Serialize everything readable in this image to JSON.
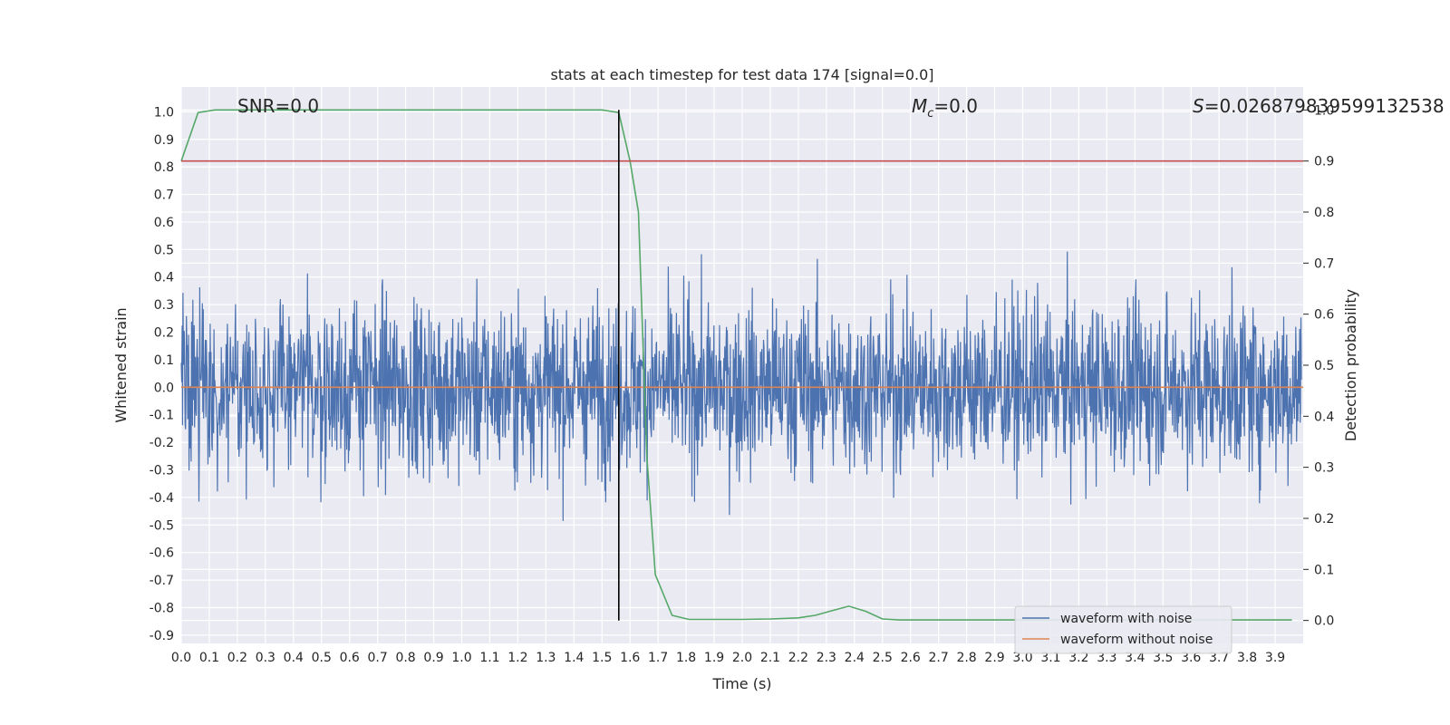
{
  "chart_data": {
    "type": "line",
    "title": "stats at each timestep for test data 174 [signal=0.0]",
    "xlabel": "Time (s)",
    "ylabel": "Whitened strain",
    "y2label": "Detection probability",
    "xlim": [
      0.0,
      4.0
    ],
    "ylim": [
      -0.93,
      1.09
    ],
    "y2lim": [
      -0.045,
      1.045
    ],
    "x_ticks": [
      0.0,
      0.1,
      0.2,
      0.3,
      0.4,
      0.5,
      0.6,
      0.7,
      0.8,
      0.9,
      1.0,
      1.1,
      1.2,
      1.3,
      1.4,
      1.5,
      1.6,
      1.7,
      1.8,
      1.9,
      2.0,
      2.1,
      2.2,
      2.3,
      2.4,
      2.5,
      2.6,
      2.7,
      2.8,
      2.9,
      3.0,
      3.1,
      3.2,
      3.3,
      3.4,
      3.5,
      3.6,
      3.7,
      3.8,
      3.9
    ],
    "y_ticks": [
      1.0,
      0.9,
      0.8,
      0.7,
      0.6,
      0.5,
      0.4,
      0.3,
      0.2,
      0.1,
      0.0,
      -0.1,
      -0.2,
      -0.3,
      -0.4,
      -0.5,
      -0.6,
      -0.7,
      -0.8,
      -0.9
    ],
    "y2_ticks": [
      1.0,
      0.9,
      0.8,
      0.7,
      0.6,
      0.5,
      0.4,
      0.3,
      0.2,
      0.1,
      0.0
    ],
    "grid": true,
    "legend_position": "lower-right",
    "annotations": {
      "snr": "SNR=0.0",
      "mc": "=0.0",
      "mc_symbol": "M",
      "mc_subscript": "c",
      "s": "=0.026879839599132538",
      "s_symbol": "S"
    },
    "series": [
      {
        "name": "waveform with noise",
        "color": "#4c72b0",
        "axis": "left",
        "note": "dense noise trace between approx -0.84 and 1.0"
      },
      {
        "name": "waveform without noise",
        "color": "#dd8452",
        "axis": "left",
        "x": [
          0.0,
          4.0
        ],
        "y": [
          0.0,
          0.0
        ]
      },
      {
        "axis": "right",
        "color": "#55a868",
        "x": [
          0.0,
          0.06,
          0.12,
          0.18,
          0.24,
          0.3,
          0.36,
          0.42,
          0.48,
          0.54,
          0.6,
          0.66,
          0.72,
          0.78,
          0.84,
          0.9,
          0.96,
          1.02,
          1.08,
          1.14,
          1.2,
          1.26,
          1.32,
          1.38,
          1.44,
          1.5,
          1.56,
          1.6,
          1.63,
          1.66,
          1.69,
          1.75,
          1.81,
          1.87,
          1.93,
          2.0,
          2.1,
          2.2,
          2.26,
          2.32,
          2.38,
          2.44,
          2.5,
          2.56,
          2.62,
          2.7,
          2.8,
          2.9,
          3.0,
          3.2,
          3.4,
          3.6,
          3.8,
          3.96
        ],
        "y": [
          0.9,
          0.995,
          1.0,
          1.0,
          1.0,
          1.0,
          1.0,
          1.0,
          1.0,
          1.0,
          1.0,
          1.0,
          1.0,
          1.0,
          1.0,
          1.0,
          1.0,
          1.0,
          1.0,
          1.0,
          1.0,
          1.0,
          1.0,
          1.0,
          1.0,
          1.0,
          0.995,
          0.9,
          0.8,
          0.32,
          0.09,
          0.01,
          0.002,
          0.002,
          0.002,
          0.002,
          0.003,
          0.005,
          0.01,
          0.019,
          0.028,
          0.018,
          0.003,
          0.001,
          0.001,
          0.001,
          0.001,
          0.001,
          0.001,
          0.001,
          0.001,
          0.001,
          0.001,
          0.001
        ]
      },
      {
        "axis": "right",
        "color": "#c44e52",
        "x": [
          0.0,
          4.0
        ],
        "y": [
          0.9,
          0.9
        ]
      },
      {
        "axis": "right",
        "color": "#000000",
        "x": [
          1.56,
          1.56
        ],
        "y": [
          0.0,
          1.0
        ]
      }
    ]
  }
}
